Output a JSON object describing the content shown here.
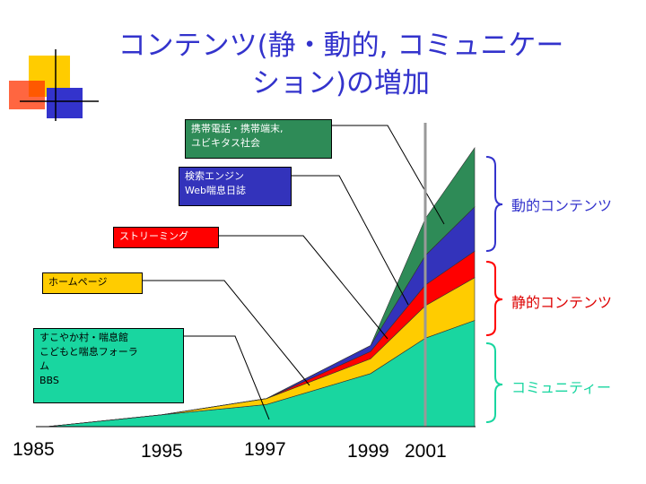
{
  "title": {
    "line1": "コンテンツ(静・動的, コミュニケー",
    "line2": "ション)の増加"
  },
  "decoration": {
    "colors": [
      "#ffcc00",
      "#ff3300",
      "#3333cc"
    ]
  },
  "callouts": {
    "mobile": {
      "lines": [
        "携帯電話・携帯端末,",
        "ユビキタス社会"
      ]
    },
    "search": {
      "lines": [
        "検索エンジン",
        "Web喘息日誌"
      ]
    },
    "streaming": {
      "lines": [
        "ストリーミング"
      ]
    },
    "homepage": {
      "lines": [
        "ホームページ"
      ]
    },
    "community": {
      "lines": [
        "すこやか村・喘息館",
        "こどもと喘息フォーラ",
        "ム",
        "BBS"
      ]
    }
  },
  "brace_labels": {
    "dynamic": "動的コンテンツ",
    "static": "静的コンテンツ",
    "community": "コミュニティー"
  },
  "chart_data": {
    "type": "area",
    "stacked": true,
    "x": [
      1985,
      1995,
      1997,
      1999,
      2001,
      2002
    ],
    "x_tick_labels": [
      "1985",
      "1995",
      "1997",
      "1999",
      "2001"
    ],
    "series": [
      {
        "name": "すこやか村・喘息館 こどもと喘息フォーラム BBS",
        "color": "#19d6a0",
        "values": [
          0,
          8,
          15,
          36,
          60,
          72
        ]
      },
      {
        "name": "ホームページ",
        "color": "#ffcc00",
        "values": [
          0,
          0,
          4,
          10,
          22,
          29
        ]
      },
      {
        "name": "ストリーミング",
        "color": "#ff0000",
        "values": [
          0,
          0,
          0,
          5,
          14,
          18
        ]
      },
      {
        "name": "検索エンジン Web喘息日誌",
        "color": "#3333bb",
        "values": [
          0,
          0,
          0,
          4,
          20,
          30
        ]
      },
      {
        "name": "携帯電話・携帯端末, ユビキタス社会",
        "color": "#2e8b57",
        "values": [
          0,
          0,
          0,
          0,
          25,
          40
        ]
      }
    ],
    "ylim": [
      0,
      189
    ],
    "highlight_x": 2001,
    "grid": false
  }
}
